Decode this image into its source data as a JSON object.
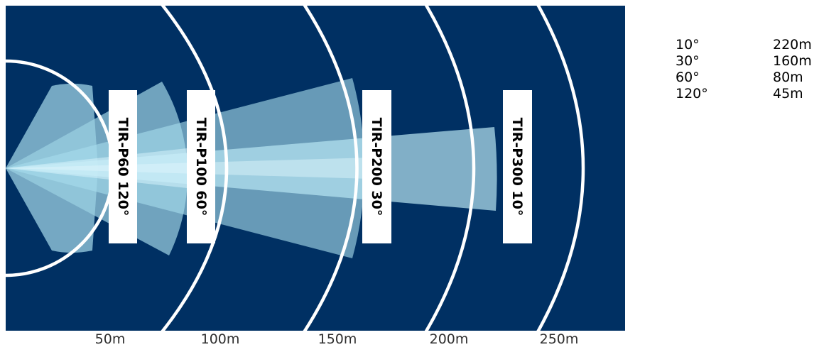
{
  "colors": {
    "background": "#003063",
    "rings": "#ffffff",
    "beam_light": "#cdeffb",
    "label_box": "#ffffff"
  },
  "beams": [
    {
      "label": "TIR-P60 120°"
    },
    {
      "label": "TIR-P100 60°"
    },
    {
      "label": "TIR-P200 30°"
    },
    {
      "label": "TIR-P300 10°"
    }
  ],
  "distance_labels": [
    "50m",
    "100m",
    "150m",
    "200m",
    "250m"
  ],
  "spec_table": [
    {
      "angle": "10°",
      "range": "220m"
    },
    {
      "angle": "30°",
      "range": "160m"
    },
    {
      "angle": "60°",
      "range": "80m"
    },
    {
      "angle": "120°",
      "range": "45m"
    }
  ]
}
